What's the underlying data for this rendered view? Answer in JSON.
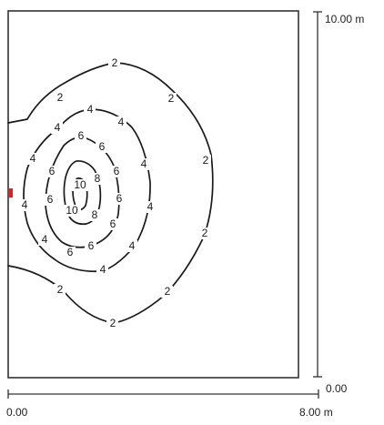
{
  "dimensions": {
    "height_max_label": "10.00 m",
    "height_min_label": "0.00",
    "width_min_label": "0.00",
    "width_max_label": "8.00 m"
  },
  "contour_labels": {
    "c2": "2",
    "c4": "4",
    "c6": "6",
    "c8": "8",
    "c10": "10"
  },
  "colors": {
    "line": "#1a1a1a",
    "source_marker": "#e32020"
  }
}
